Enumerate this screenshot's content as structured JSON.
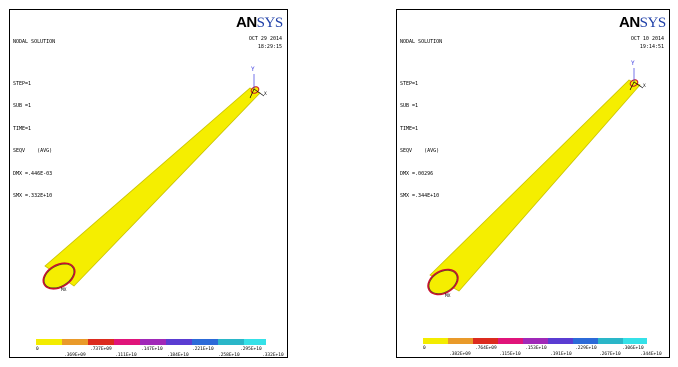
{
  "panels": [
    {
      "title_lines": [
        "NODAL SOLUTION",
        "STEP=1",
        "SUB =1",
        "TIME=1",
        "SEQV    (AVG)",
        "DMX =.446E-03",
        "SMX =.332E+10"
      ],
      "logo_a": "AN",
      "logo_b": "SYS",
      "date": "OCT 29 2014",
      "time": "18:29:15",
      "axis_y": "Y",
      "axis_x": "X",
      "mx_label": "MX",
      "legend_min": "0",
      "legend_top": [
        ".737E+09",
        ".147E+10",
        ".221E+10",
        ".295E+10"
      ],
      "legend_bottom": [
        ".369E+09",
        ".111E+10",
        ".184E+10",
        ".258E+10",
        ".332E+10"
      ]
    },
    {
      "title_lines": [
        "NODAL SOLUTION",
        "STEP=1",
        "SUB =1",
        "TIME=1",
        "SEQV    (AVG)",
        "DMX =.00296",
        "SMX =.344E+10"
      ],
      "logo_a": "AN",
      "logo_b": "SYS",
      "date": "OCT 10 2014",
      "time": "19:14:51",
      "axis_y": "Y",
      "axis_x": "X",
      "mx_label": "MX",
      "legend_min": "0",
      "legend_top": [
        ".764E+09",
        ".153E+10",
        ".229E+10",
        ".306E+10"
      ],
      "legend_bottom": [
        ".382E+09",
        ".115E+10",
        ".191E+10",
        ".267E+10",
        ".344E+10"
      ]
    }
  ],
  "colors": {
    "beam": "#f5ee00",
    "beam_edge": "#c9c200",
    "base_ring": "#c8102e",
    "legend": [
      "#f3ec00",
      "#e99a2a",
      "#dc2b1e",
      "#e0147a",
      "#a028b8",
      "#5a3cd2",
      "#2c6ad8",
      "#2ab6c8",
      "#35e1e8"
    ]
  }
}
